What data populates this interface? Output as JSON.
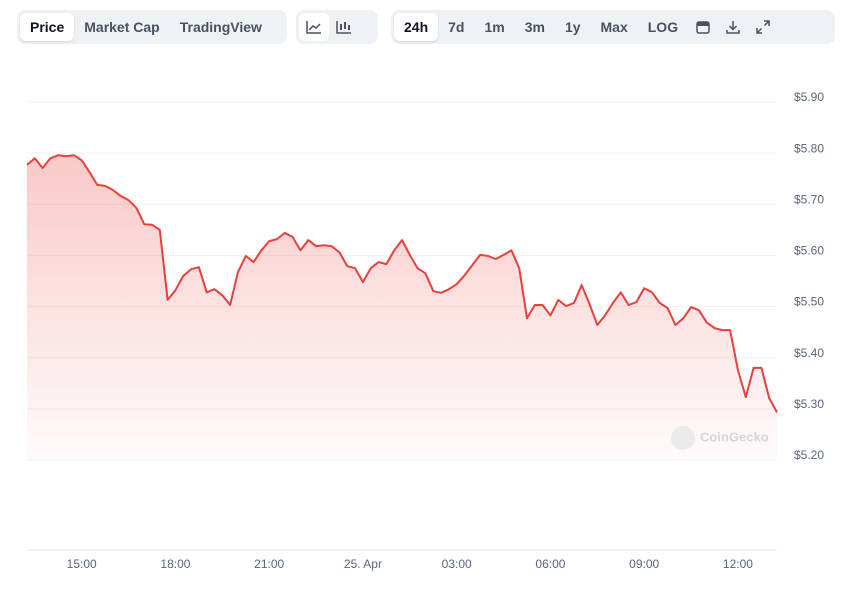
{
  "toolbar": {
    "views": [
      "Price",
      "Market Cap",
      "TradingView"
    ],
    "ranges": [
      "24h",
      "7d",
      "1m",
      "3m",
      "1y",
      "Max",
      "LOG"
    ]
  },
  "watermark": "CoinGecko",
  "chart_data": {
    "type": "line",
    "color": "#e8403b",
    "grid": true,
    "categories": [
      null,
      null,
      null,
      null,
      null,
      null,
      null,
      "15:00",
      null,
      null,
      null,
      null,
      null,
      null,
      null,
      null,
      null,
      null,
      null,
      "18:00",
      null,
      null,
      null,
      null,
      null,
      null,
      null,
      null,
      null,
      null,
      null,
      "21:00",
      null,
      null,
      null,
      null,
      null,
      null,
      null,
      null,
      null,
      null,
      null,
      "25. Apr",
      null,
      null,
      null,
      null,
      null,
      null,
      null,
      null,
      null,
      null,
      null,
      "03:00",
      null,
      null,
      null,
      null,
      null,
      null,
      null,
      null,
      null,
      null,
      null,
      "06:00",
      null,
      null,
      null,
      null,
      null,
      null,
      null,
      null,
      null,
      null,
      null,
      "09:00",
      null,
      null,
      null,
      null,
      null,
      null,
      null,
      null,
      null,
      null,
      null,
      "12:00",
      null,
      null,
      null,
      null,
      null
    ],
    "values": [
      5.777,
      5.79,
      5.771,
      5.79,
      5.796,
      5.794,
      5.796,
      5.786,
      5.763,
      5.738,
      5.736,
      5.728,
      5.716,
      5.708,
      5.693,
      5.661,
      5.66,
      5.65,
      5.513,
      5.532,
      5.56,
      5.573,
      5.577,
      5.528,
      5.534,
      5.522,
      5.503,
      5.567,
      5.599,
      5.587,
      5.61,
      5.628,
      5.632,
      5.644,
      5.636,
      5.61,
      5.63,
      5.618,
      5.62,
      5.618,
      5.606,
      5.579,
      5.575,
      5.548,
      5.575,
      5.587,
      5.583,
      5.61,
      5.63,
      5.601,
      5.575,
      5.565,
      5.53,
      5.527,
      5.534,
      5.544,
      5.561,
      5.581,
      5.601,
      5.599,
      5.593,
      5.601,
      5.61,
      5.575,
      5.477,
      5.503,
      5.503,
      5.483,
      5.513,
      5.501,
      5.507,
      5.542,
      5.505,
      5.464,
      5.483,
      5.507,
      5.528,
      5.503,
      5.509,
      5.536,
      5.528,
      5.507,
      5.497,
      5.464,
      5.477,
      5.499,
      5.493,
      5.469,
      5.458,
      5.454,
      5.454,
      5.376,
      5.323,
      5.38,
      5.38,
      5.321,
      5.293
    ],
    "ylim": [
      5.2,
      5.9
    ],
    "yticks": [
      {
        "value": 5.2,
        "label": "$5.20"
      },
      {
        "value": 5.3,
        "label": "$5.30"
      },
      {
        "value": 5.4,
        "label": "$5.40"
      },
      {
        "value": 5.5,
        "label": "$5.50"
      },
      {
        "value": 5.6,
        "label": "$5.60"
      },
      {
        "value": 5.7,
        "label": "$5.70"
      },
      {
        "value": 5.8,
        "label": "$5.80"
      },
      {
        "value": 5.9,
        "label": "$5.90"
      }
    ]
  }
}
